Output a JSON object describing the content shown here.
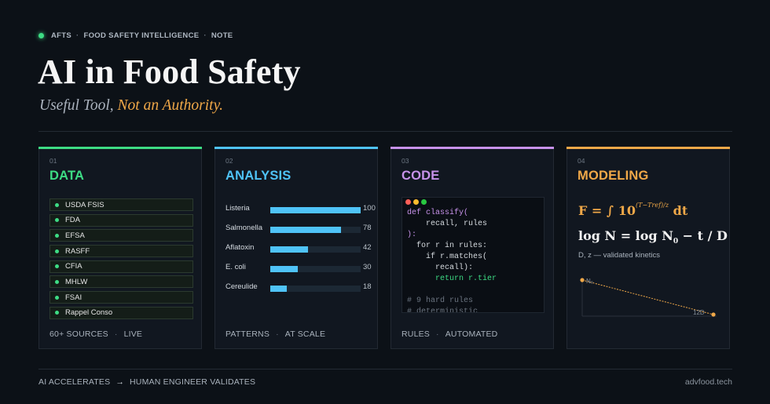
{
  "header": {
    "eyebrow": [
      "AFTS",
      "FOOD SAFETY INTELLIGENCE",
      "NOTE"
    ],
    "eyebrow_sep": "·",
    "title": "AI in Food Safety",
    "subtitle_plain": "Useful Tool, ",
    "subtitle_accent": "Not an Authority."
  },
  "colors": {
    "data": "#3ddc84",
    "analysis": "#4fc3f7",
    "code": "#c792ea",
    "modeling": "#f0a848"
  },
  "cards": {
    "data": {
      "num": "01",
      "title": "DATA",
      "sources": [
        "USDA FSIS",
        "FDA",
        "EFSA",
        "RASFF",
        "CFIA",
        "MHLW",
        "FSAI",
        "Rappel Conso"
      ],
      "foot": [
        "60+  SOURCES",
        "LIVE"
      ]
    },
    "analysis": {
      "num": "02",
      "title": "ANALYSIS",
      "bars": [
        {
          "label": "Listeria",
          "value": 100
        },
        {
          "label": "Salmonella",
          "value": 78
        },
        {
          "label": "Aflatoxin",
          "value": 42
        },
        {
          "label": "E. coli",
          "value": 30
        },
        {
          "label": "Cereulide",
          "value": 18
        }
      ],
      "max": 100,
      "foot": [
        "PATTERNS",
        "AT SCALE"
      ]
    },
    "code": {
      "num": "03",
      "title": "CODE",
      "lines": [
        {
          "t": "def classify(",
          "c": "kw"
        },
        {
          "t": "    recall, rules",
          "c": ""
        },
        {
          "t": "):",
          "c": "kw"
        },
        {
          "t": "  for r in rules:",
          "c": ""
        },
        {
          "t": "    if r.matches(",
          "c": ""
        },
        {
          "t": "      recall):",
          "c": ""
        },
        {
          "t": "      return r.tier",
          "c": "ret"
        },
        {
          "t": "",
          "c": ""
        },
        {
          "t": "# 9 hard rules",
          "c": "cm"
        },
        {
          "t": "# deterministic",
          "c": "cm"
        }
      ],
      "foot": [
        "RULES",
        "AUTOMATED"
      ]
    },
    "modeling": {
      "num": "04",
      "title": "MODELING",
      "f1_a": "F = ∫ 10",
      "f1_exp": "(T−Tref)/z",
      "f1_b": " dt",
      "f2_a": "log N  =  log N",
      "f2_sub": "0",
      "f2_b": "  −  t / D",
      "note": "D, z  —  validated kinetics",
      "plot_start": "N₀",
      "plot_end": "12D"
    }
  },
  "footer": {
    "left_a": "AI ACCELERATES",
    "arrow": "→",
    "left_b": "HUMAN ENGINEER VALIDATES",
    "right": "advfood.tech"
  }
}
